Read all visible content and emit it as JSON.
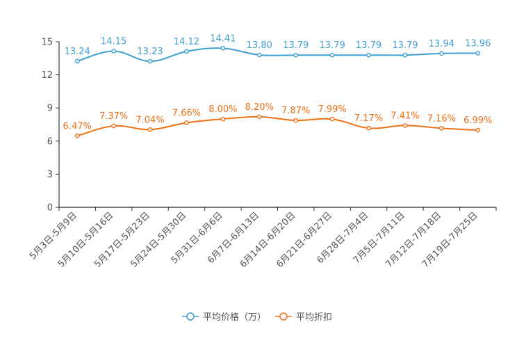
{
  "chart_data": {
    "type": "line",
    "title": "",
    "xlabel": "",
    "ylabel": "",
    "ylim": [
      0,
      15
    ],
    "yticks": [
      0,
      3,
      6,
      9,
      12,
      15
    ],
    "grid": false,
    "legend_position": "bottom-center",
    "categories": [
      "5月3日-5月9日",
      "5月10日-5月16日",
      "5月17日-5月23日",
      "5月24日-5月30日",
      "5月31日-6月6日",
      "6月7日-6月13日",
      "6月14日-6月20日",
      "6月21日-6月27日",
      "6月28日-7月4日",
      "7月5日-7月11日",
      "7月12日-7月18日",
      "7月19日-7月25日"
    ],
    "series": [
      {
        "name": "平均价格（万）",
        "color": "#3d9fd1",
        "values": [
          13.24,
          14.15,
          13.23,
          14.12,
          14.41,
          13.8,
          13.79,
          13.79,
          13.79,
          13.79,
          13.94,
          13.96
        ],
        "labels": [
          "13.24",
          "14.15",
          "13.23",
          "14.12",
          "14.41",
          "13.80",
          "13.79",
          "13.79",
          "13.79",
          "13.79",
          "13.94",
          "13.96"
        ]
      },
      {
        "name": "平均折扣",
        "color": "#f07014",
        "values": [
          6.47,
          7.37,
          7.04,
          7.66,
          8.0,
          8.2,
          7.87,
          7.99,
          7.17,
          7.41,
          7.16,
          6.99
        ],
        "labels": [
          "6.47%",
          "7.37%",
          "7.04%",
          "7.66%",
          "8.00%",
          "8.20%",
          "7.87%",
          "7.99%",
          "7.17%",
          "7.41%",
          "7.16%",
          "6.99%"
        ]
      }
    ]
  }
}
